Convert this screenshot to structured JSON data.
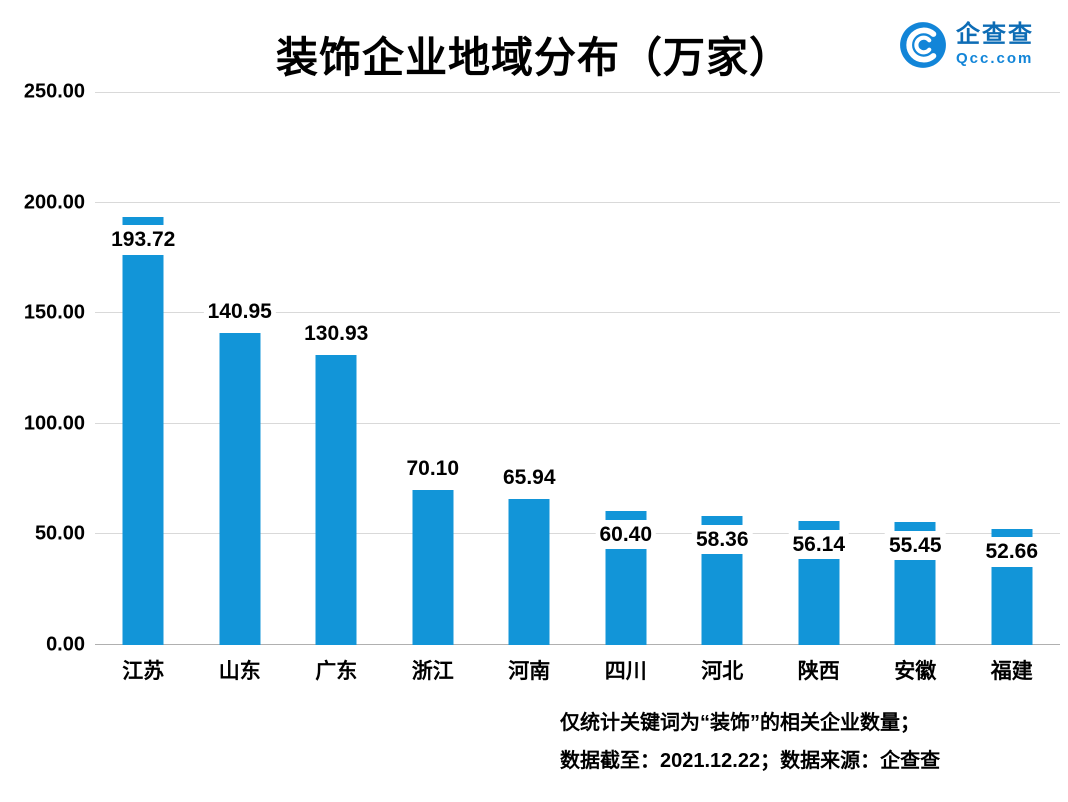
{
  "header": {
    "title": "装饰企业地域分布（万家）",
    "logo": {
      "brand": "企查查",
      "domain": "Qcc.com",
      "icon_color": "#1285d8"
    }
  },
  "chart_data": {
    "type": "bar",
    "title": "装饰企业地域分布（万家）",
    "categories": [
      "江苏",
      "山东",
      "广东",
      "浙江",
      "河南",
      "四川",
      "河北",
      "陕西",
      "安徽",
      "福建"
    ],
    "values": [
      193.72,
      140.95,
      130.93,
      70.1,
      65.94,
      60.4,
      58.36,
      56.14,
      55.45,
      52.66
    ],
    "value_labels": [
      "193.72",
      "140.95",
      "130.93",
      "70.10",
      "65.94",
      "60.40",
      "58.36",
      "56.14",
      "55.45",
      "52.66"
    ],
    "label_positions": [
      "inside",
      "above",
      "above",
      "above",
      "above",
      "inside",
      "inside",
      "inside",
      "inside",
      "inside"
    ],
    "xlabel": "",
    "ylabel": "",
    "ylim": [
      0,
      250
    ],
    "yticks": [
      "250.00",
      "200.00",
      "150.00",
      "100.00",
      "50.00",
      "0.00"
    ],
    "grid": true,
    "legend": "none",
    "bar_color": "#1295d8",
    "gridline_color": "#d9d9d9"
  },
  "footnotes": {
    "line1": "仅统计关键词为“装饰”的相关企业数量；",
    "line2": "数据截至：2021.12.22；数据来源：企查查"
  }
}
